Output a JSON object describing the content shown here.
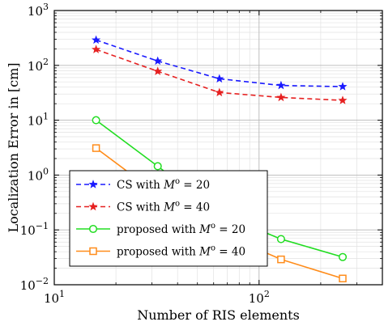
{
  "chart_data": {
    "type": "line",
    "xlabel": "Number of RIS elements",
    "ylabel": "Localization Error in [cm]",
    "x_scale": "log",
    "y_scale": "log",
    "xlim": [
      10,
      400
    ],
    "ylim": [
      0.01,
      1000
    ],
    "x_ticks": [
      {
        "value": 10,
        "base": "10",
        "exp": "1"
      },
      {
        "value": 100,
        "base": "10",
        "exp": "2"
      }
    ],
    "y_ticks": [
      {
        "value": 0.01,
        "base": "10",
        "exp": "−2"
      },
      {
        "value": 0.1,
        "base": "10",
        "exp": "−1"
      },
      {
        "value": 1,
        "base": "10",
        "exp": "0"
      },
      {
        "value": 10,
        "base": "10",
        "exp": "1"
      },
      {
        "value": 100,
        "base": "10",
        "exp": "2"
      },
      {
        "value": 1000,
        "base": "10",
        "exp": "3"
      }
    ],
    "grid": true,
    "legend_position": "bottom-left",
    "series": [
      {
        "name": "CS with M° = 20",
        "legend_parts": {
          "pre": "CS with ",
          "var": "M",
          "sup": "o",
          "post": " = 20"
        },
        "color": "#1a1aff",
        "dash": "6,4",
        "marker": "star",
        "x": [
          16,
          32,
          64,
          128,
          256
        ],
        "y": [
          290,
          120,
          57,
          43,
          41
        ]
      },
      {
        "name": "CS with M° = 40",
        "legend_parts": {
          "pre": "CS with ",
          "var": "M",
          "sup": "o",
          "post": " = 40"
        },
        "color": "#e62020",
        "dash": "6,4",
        "marker": "star",
        "x": [
          16,
          32,
          64,
          128,
          256
        ],
        "y": [
          195,
          78,
          32,
          26,
          23
        ]
      },
      {
        "name": "proposed with M° = 20",
        "legend_parts": {
          "pre": "proposed with ",
          "var": "M",
          "sup": "o",
          "post": " = 20"
        },
        "color": "#22dd22",
        "dash": "",
        "marker": "circle",
        "x": [
          16,
          32,
          64,
          128,
          256
        ],
        "y": [
          10,
          1.45,
          0.2,
          0.068,
          0.032
        ]
      },
      {
        "name": "proposed with M° = 40",
        "legend_parts": {
          "pre": "proposed with ",
          "var": "M",
          "sup": "o",
          "post": " = 40"
        },
        "color": "#ff8c1a",
        "dash": "",
        "marker": "square",
        "x": [
          16,
          32,
          64,
          128,
          256
        ],
        "y": [
          3.1,
          0.45,
          0.09,
          0.029,
          0.013
        ]
      }
    ]
  }
}
